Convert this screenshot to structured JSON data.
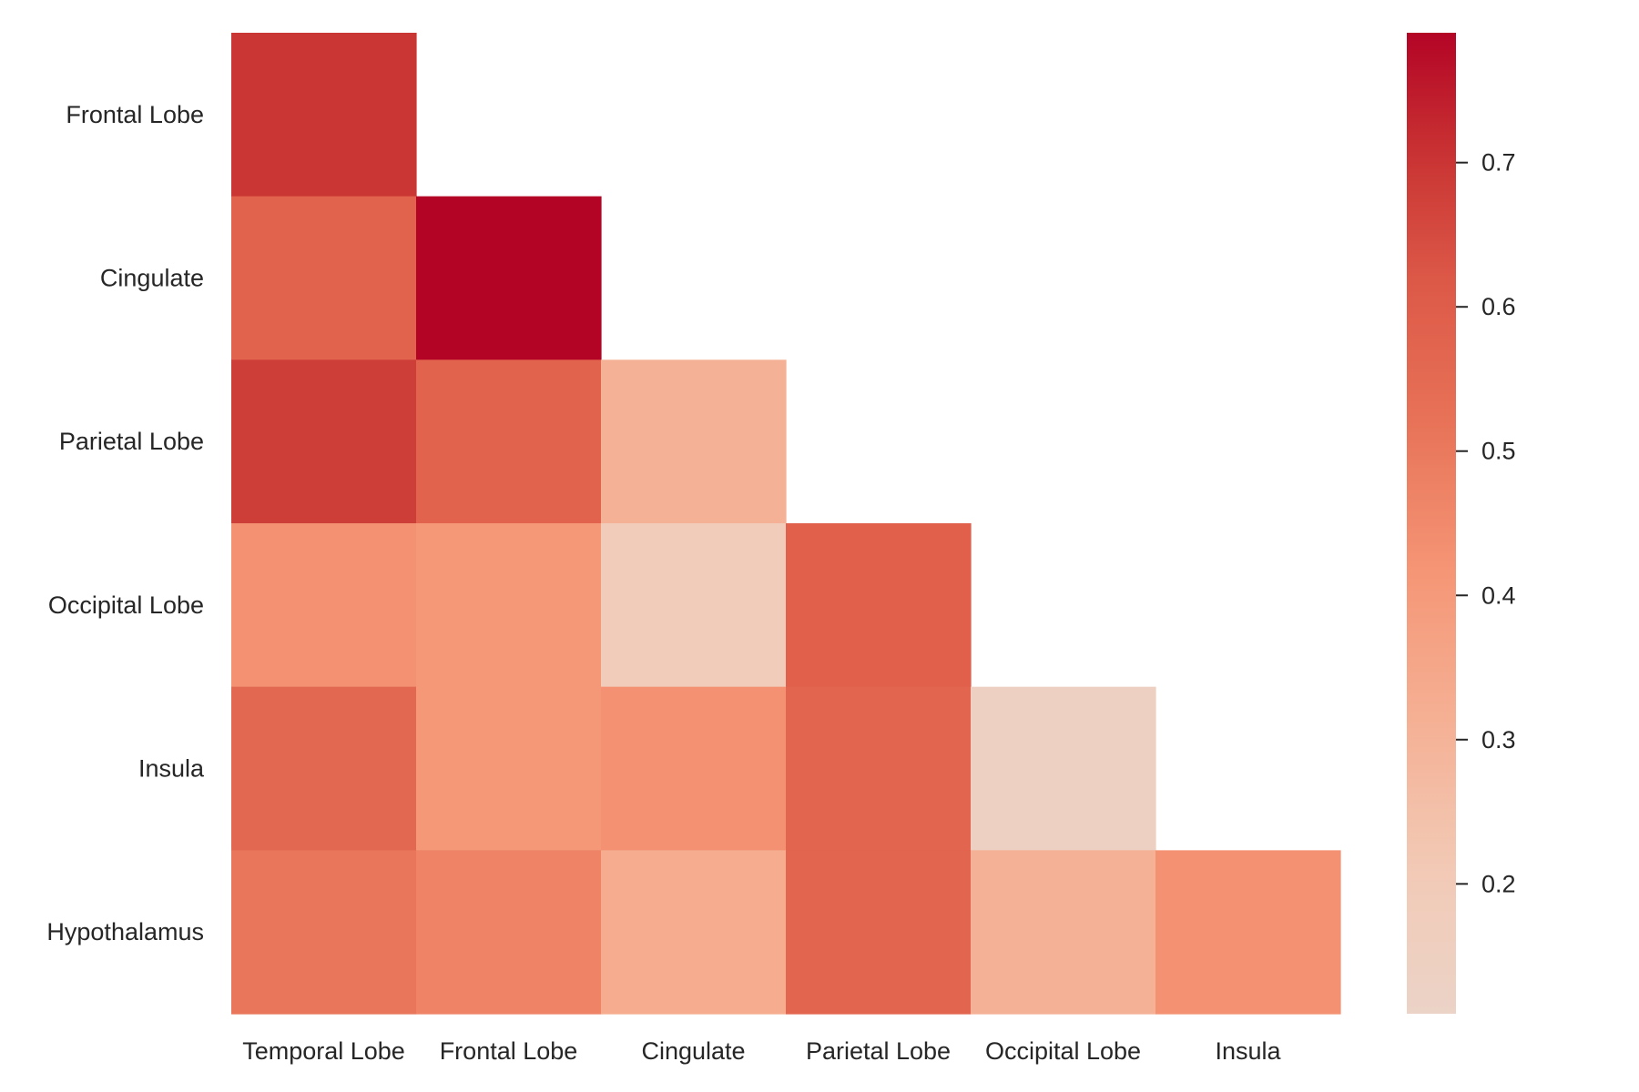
{
  "chart_data": {
    "type": "heatmap",
    "title": "",
    "xlabel": "",
    "ylabel": "",
    "x_categories": [
      "Temporal Lobe",
      "Frontal Lobe",
      "Cingulate",
      "Parietal Lobe",
      "Occipital Lobe",
      "Insula"
    ],
    "y_categories": [
      "Frontal Lobe",
      "Cingulate",
      "Parietal Lobe",
      "Occipital Lobe",
      "Insula",
      "Hypothalamus"
    ],
    "values": [
      [
        0.7,
        null,
        null,
        null,
        null,
        null
      ],
      [
        0.58,
        0.79,
        null,
        null,
        null,
        null
      ],
      [
        0.68,
        0.58,
        0.31,
        null,
        null,
        null
      ],
      [
        0.43,
        0.41,
        0.19,
        0.59,
        null,
        null
      ],
      [
        0.56,
        0.41,
        0.43,
        0.57,
        0.14,
        null
      ],
      [
        0.51,
        0.47,
        0.33,
        0.57,
        0.31,
        0.43
      ]
    ],
    "mask": "upper-triangle",
    "colormap": "coolwarm-positive",
    "colorbar": {
      "vmin": 0.11,
      "vmax": 0.79,
      "ticks": [
        0.2,
        0.3,
        0.4,
        0.5,
        0.6,
        0.7
      ],
      "tick_labels": [
        "0.2",
        "0.3",
        "0.4",
        "0.5",
        "0.6",
        "0.7"
      ],
      "position": "right"
    },
    "grid": false,
    "legend": "none",
    "colors": {
      "low": "#ebd3c7",
      "high": "#b40426",
      "background": "#ffffff",
      "text": "#262626"
    }
  }
}
